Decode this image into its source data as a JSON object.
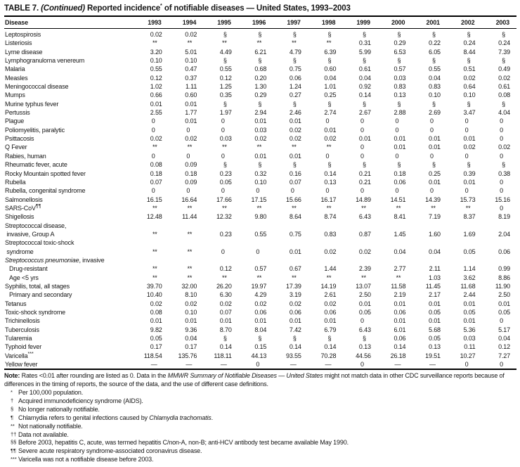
{
  "title": {
    "part1": "TABLE 7. ",
    "part2": "(Continued)",
    "part3": " Reported incidence^*^ of notifiable diseases — United States, 1993–2003"
  },
  "table": {
    "disease_header": "Disease",
    "years": [
      "1993",
      "1994",
      "1995",
      "1996",
      "1997",
      "1998",
      "1999",
      "2000",
      "2001",
      "2002",
      "2003"
    ],
    "rows": [
      {
        "label": "Leptospirosis",
        "values": [
          "0.02",
          "0.02",
          "§",
          "§",
          "§",
          "§",
          "§",
          "§",
          "§",
          "§",
          "§"
        ]
      },
      {
        "label": "Listeriosis",
        "values": [
          "**",
          "**",
          "**",
          "**",
          "**",
          "**",
          "0.31",
          "0.29",
          "0.22",
          "0.24",
          "0.24"
        ]
      },
      {
        "label": "Lyme disease",
        "values": [
          "3.20",
          "5.01",
          "4.49",
          "6.21",
          "4.79",
          "6.39",
          "5.99",
          "6.53",
          "6.05",
          "8.44",
          "7.39"
        ]
      },
      {
        "label": "Lymphogranuloma venereum",
        "values": [
          "0.10",
          "0.10",
          "§",
          "§",
          "§",
          "§",
          "§",
          "§",
          "§",
          "§",
          "§"
        ]
      },
      {
        "label": "Malaria",
        "values": [
          "0.55",
          "0.47",
          "0.55",
          "0.68",
          "0.75",
          "0.60",
          "0.61",
          "0.57",
          "0.55",
          "0.51",
          "0.49"
        ]
      },
      {
        "label": "Measles",
        "values": [
          "0.12",
          "0.37",
          "0.12",
          "0.20",
          "0.06",
          "0.04",
          "0.04",
          "0.03",
          "0.04",
          "0.02",
          "0.02"
        ]
      },
      {
        "label": "Meningococcal disease",
        "values": [
          "1.02",
          "1.11",
          "1.25",
          "1.30",
          "1.24",
          "1.01",
          "0.92",
          "0.83",
          "0.83",
          "0.64",
          "0.61"
        ]
      },
      {
        "label": "Mumps",
        "values": [
          "0.66",
          "0.60",
          "0.35",
          "0.29",
          "0.27",
          "0.25",
          "0.14",
          "0.13",
          "0.10",
          "0.10",
          "0.08"
        ]
      },
      {
        "label": "Murine typhus fever",
        "values": [
          "0.01",
          "0.01",
          "§",
          "§",
          "§",
          "§",
          "§",
          "§",
          "§",
          "§",
          "§"
        ]
      },
      {
        "label": "Pertussis",
        "values": [
          "2.55",
          "1.77",
          "1.97",
          "2.94",
          "2.46",
          "2.74",
          "2.67",
          "2.88",
          "2.69",
          "3.47",
          "4.04"
        ]
      },
      {
        "label": "Plague",
        "values": [
          "0",
          "0.01",
          "0",
          "0.01",
          "0.01",
          "0",
          "0",
          "0",
          "0",
          "0",
          "0"
        ]
      },
      {
        "label": "Poliomyelitis, paralytic",
        "values": [
          "0",
          "0",
          "0",
          "0.03",
          "0.02",
          "0.01",
          "0",
          "0",
          "0",
          "0",
          "0"
        ]
      },
      {
        "label": "Psittacosis",
        "values": [
          "0.02",
          "0.02",
          "0.03",
          "0.02",
          "0.02",
          "0.02",
          "0.01",
          "0.01",
          "0.01",
          "0.01",
          "0"
        ]
      },
      {
        "label": "Q Fever",
        "values": [
          "**",
          "**",
          "**",
          "**",
          "**",
          "**",
          "0",
          "0.01",
          "0.01",
          "0.02",
          "0.02"
        ]
      },
      {
        "label": "Rabies, human",
        "values": [
          "0",
          "0",
          "0",
          "0.01",
          "0.01",
          "0",
          "0",
          "0",
          "0",
          "0",
          "0"
        ]
      },
      {
        "label": "Rheumatic fever, acute",
        "values": [
          "0.08",
          "0.09",
          "§",
          "§",
          "§",
          "§",
          "§",
          "§",
          "§",
          "§",
          "§"
        ]
      },
      {
        "label": "Rocky Mountain spotted fever",
        "values": [
          "0.18",
          "0.18",
          "0.23",
          "0.32",
          "0.16",
          "0.14",
          "0.21",
          "0.18",
          "0.25",
          "0.39",
          "0.38"
        ]
      },
      {
        "label": "Rubella",
        "values": [
          "0.07",
          "0.09",
          "0.05",
          "0.10",
          "0.07",
          "0.13",
          "0.21",
          "0.06",
          "0.01",
          "0.01",
          "0"
        ]
      },
      {
        "label": "Rubella, congenital syndrome",
        "values": [
          "0",
          "0",
          "0",
          "0",
          "0",
          "0",
          "0",
          "0",
          "0",
          "0",
          "0"
        ]
      },
      {
        "label": "Salmonellosis",
        "values": [
          "16.15",
          "16.64",
          "17.66",
          "17.15",
          "15.66",
          "16.17",
          "14.89",
          "14.51",
          "14.39",
          "15.73",
          "15.16"
        ]
      },
      {
        "label": "SARS-CoV^¶¶^",
        "values": [
          "**",
          "**",
          "**",
          "**",
          "**",
          "**",
          "**",
          "**",
          "**",
          "**",
          "0"
        ]
      },
      {
        "label": "Shigellosis",
        "values": [
          "12.48",
          "11.44",
          "12.32",
          "9.80",
          "8.64",
          "8.74",
          "6.43",
          "8.41",
          "7.19",
          "8.37",
          "8.19"
        ]
      },
      {
        "label": "Streptococcal disease,\n invasive, Group A",
        "values": [
          "**",
          "**",
          "0.23",
          "0.55",
          "0.75",
          "0.83",
          "0.87",
          "1.45",
          "1.60",
          "1.69",
          "2.04"
        ]
      },
      {
        "label": "Streptococcal toxic-shock\n syndrome",
        "values": [
          "**",
          "**",
          "0",
          "0",
          "0.01",
          "0.02",
          "0.02",
          "0.04",
          "0.04",
          "0.05",
          "0.06"
        ]
      },
      {
        "label": "*Streptococcus pneumoniae*, invasive",
        "group": true
      },
      {
        "label": "Drug-resistant",
        "indent": true,
        "values": [
          "**",
          "**",
          "0.12",
          "0.57",
          "0.67",
          "1.44",
          "2.39",
          "2.77",
          "2.11",
          "1.14",
          "0.99"
        ]
      },
      {
        "label": "Age <5 yrs",
        "indent": true,
        "values": [
          "**",
          "**",
          "**",
          "**",
          "**",
          "**",
          "**",
          "**",
          "1.03",
          "3.62",
          "8.86"
        ]
      },
      {
        "label": "Syphilis, total, all stages",
        "values": [
          "39.70",
          "32.00",
          "26.20",
          "19.97",
          "17.39",
          "14.19",
          "13.07",
          "11.58",
          "11.45",
          "11.68",
          "11.90"
        ]
      },
      {
        "label": "Primary and secondary",
        "indent": true,
        "values": [
          "10.40",
          "8.10",
          "6.30",
          "4.29",
          "3.19",
          "2.61",
          "2.50",
          "2.19",
          "2.17",
          "2.44",
          "2.50"
        ]
      },
      {
        "label": "Tetanus",
        "values": [
          "0.02",
          "0.02",
          "0.02",
          "0.02",
          "0.02",
          "0.02",
          "0.01",
          "0.01",
          "0.01",
          "0.01",
          "0.01"
        ]
      },
      {
        "label": "Toxic-shock syndrome",
        "values": [
          "0.08",
          "0.10",
          "0.07",
          "0.06",
          "0.06",
          "0.06",
          "0.05",
          "0.06",
          "0.05",
          "0.05",
          "0.05"
        ]
      },
      {
        "label": "Trichinellosis",
        "values": [
          "0.01",
          "0.01",
          "0.01",
          "0.01",
          "0.01",
          "0.01",
          "0",
          "0.01",
          "0.01",
          "0.01",
          "0"
        ]
      },
      {
        "label": "Tuberculosis",
        "values": [
          "9.82",
          "9.36",
          "8.70",
          "8.04",
          "7.42",
          "6.79",
          "6.43",
          "6.01",
          "5.68",
          "5.36",
          "5.17"
        ]
      },
      {
        "label": "Tularemia",
        "values": [
          "0.05",
          "0.04",
          "§",
          "§",
          "§",
          "§",
          "§",
          "0.06",
          "0.05",
          "0.03",
          "0.04"
        ]
      },
      {
        "label": "Typhoid fever",
        "values": [
          "0.17",
          "0.17",
          "0.14",
          "0.15",
          "0.14",
          "0.14",
          "0.13",
          "0.14",
          "0.13",
          "0.11",
          "0.12"
        ]
      },
      {
        "label": "Varicella^***^",
        "values": [
          "118.54",
          "135.76",
          "118.11",
          "44.13",
          "93.55",
          "70.28",
          "44.56",
          "26.18",
          "19.51",
          "10.27",
          "7.27"
        ]
      },
      {
        "label": "Yellow fever",
        "values": [
          "—",
          "—",
          "—",
          "0",
          "—",
          "—",
          "0",
          "—",
          "—",
          "0",
          "0"
        ]
      }
    ]
  },
  "note": "~Note:~ Rates <0.01 after rounding are listed as 0. Data in the *MMWR Summary of Notifiable Diseases — United States* might not match data in other CDC surveillance reports because of differences in the timing of reports, the source of the data, and the use of different case definitions.",
  "footnotes": [
    {
      "marker": "*",
      "text": "Per 100,000 population."
    },
    {
      "marker": "†",
      "text": "Acquired immunodeficiency syndrome (AIDS)."
    },
    {
      "marker": "§",
      "text": "No longer nationally notifiable."
    },
    {
      "marker": "¶",
      "text": "Chlamydia refers to genital infections caused by *Chlamydia trachomatis*."
    },
    {
      "marker": "**",
      "text": "Not nationally notifiable."
    },
    {
      "marker": "††",
      "text": "Data not available."
    },
    {
      "marker": "§§",
      "text": "Before 2003, hepatitis C, acute, was termed hepatitis C/non-A, non-B; anti-HCV antibody test became available May 1990."
    },
    {
      "marker": "¶¶",
      "text": "Severe acute respiratory syndrome-associated coronavirus disease."
    },
    {
      "marker": "***",
      "text": "Varicella was not a notifiable disease before 2003."
    }
  ]
}
